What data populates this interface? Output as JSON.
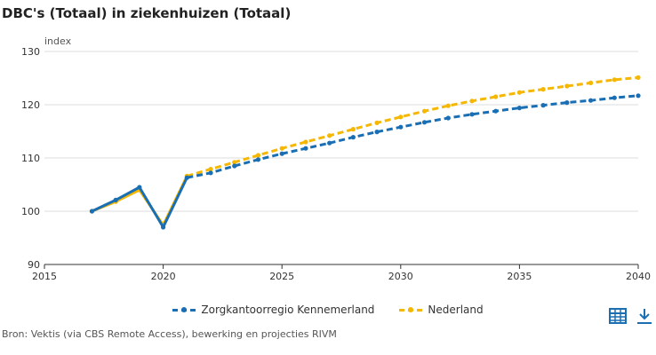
{
  "chart_data": {
    "type": "line",
    "title": "DBC's (Totaal) in ziekenhuizen (Totaal)",
    "ylabel": "index",
    "xlim": [
      2015,
      2040
    ],
    "ylim": [
      90,
      130
    ],
    "x_ticks": [
      2015,
      2020,
      2025,
      2030,
      2035,
      2040
    ],
    "y_ticks": [
      90,
      100,
      110,
      120,
      130
    ],
    "grid": true,
    "legend_position": "bottom",
    "x": [
      2017,
      2018,
      2019,
      2020,
      2021,
      2022,
      2023,
      2024,
      2025,
      2026,
      2027,
      2028,
      2029,
      2030,
      2031,
      2032,
      2033,
      2034,
      2035,
      2036,
      2037,
      2038,
      2039,
      2040
    ],
    "series": [
      {
        "name": "Zorgkantoorregio Kennemerland",
        "color": "#1a6fb4",
        "values": [
          100.0,
          102.1,
          104.5,
          97.0,
          106.3,
          107.2,
          108.5,
          109.7,
          110.8,
          111.8,
          112.8,
          113.9,
          114.9,
          115.8,
          116.7,
          117.5,
          118.2,
          118.8,
          119.4,
          119.9,
          120.4,
          120.8,
          121.3,
          121.7
        ]
      },
      {
        "name": "Nederland",
        "color": "#f5b700",
        "values": [
          100.0,
          101.8,
          104.0,
          97.4,
          106.6,
          107.9,
          109.2,
          110.5,
          111.8,
          113.0,
          114.2,
          115.4,
          116.6,
          117.7,
          118.8,
          119.8,
          120.7,
          121.5,
          122.3,
          122.9,
          123.5,
          124.1,
          124.7,
          125.1
        ]
      }
    ]
  },
  "source": "Bron: Vektis (via CBS Remote Access), bewerking en projecties RIVM",
  "icons": {
    "table": "table-icon",
    "download": "download-icon"
  }
}
